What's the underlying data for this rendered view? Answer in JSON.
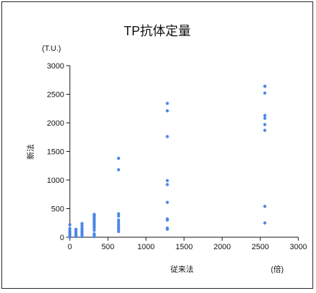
{
  "chart_data": {
    "type": "scatter",
    "title": "TP抗体定量",
    "xlabel": "従来法",
    "xunit": "(倍)",
    "ylabel": "新法",
    "yunit": "(T.U.)",
    "xlim": [
      0,
      3000
    ],
    "ylim": [
      0,
      3000
    ],
    "xticks": [
      0,
      500,
      1000,
      1500,
      2000,
      2500,
      3000
    ],
    "yticks": [
      0,
      500,
      1000,
      1500,
      2000,
      2500,
      3000
    ],
    "grid": false,
    "marker_color": "#4a86e8",
    "series": [
      {
        "x": [
          0,
          0,
          0,
          0,
          0,
          0,
          0,
          0,
          80,
          80,
          80,
          80,
          80,
          80,
          160,
          160,
          160,
          160,
          160,
          160,
          160,
          160,
          320,
          320,
          320,
          320,
          320,
          320,
          320,
          320,
          320,
          320,
          320,
          320,
          320,
          320,
          640,
          640,
          640,
          640,
          640,
          640,
          640,
          640,
          640,
          640,
          1280,
          1280,
          1280,
          1280,
          1280,
          1280,
          1280,
          1280,
          1280,
          1280,
          2560,
          2560,
          2560,
          2560,
          2560,
          2560,
          2560,
          2560,
          2560
        ],
        "y": [
          0,
          20,
          40,
          60,
          80,
          110,
          150,
          220,
          10,
          30,
          50,
          80,
          110,
          140,
          10,
          40,
          70,
          100,
          130,
          160,
          200,
          240,
          10,
          40,
          60,
          120,
          160,
          190,
          220,
          250,
          280,
          300,
          330,
          360,
          380,
          400,
          100,
          140,
          180,
          220,
          260,
          300,
          370,
          410,
          1180,
          1380,
          140,
          160,
          300,
          320,
          610,
          920,
          990,
          1760,
          2210,
          2340,
          250,
          540,
          1870,
          1970,
          2080,
          2130,
          2520,
          2640,
          2640
        ]
      }
    ]
  }
}
